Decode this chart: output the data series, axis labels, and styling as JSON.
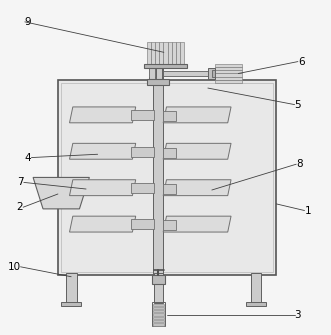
{
  "bg_color": "#f5f5f5",
  "body_fc": "#e8e8e8",
  "body_ec": "#555555",
  "blade_fc": "#d8d8d8",
  "blade_ec": "#707070",
  "shaft_fc": "#cccccc",
  "shaft_ec": "#555555",
  "motor_fc": "#d0d0d0",
  "motor_ec": "#606060",
  "leg_fc": "#cccccc",
  "leg_ec": "#606060",
  "label_fs": 7.5,
  "line_color": "#404040",
  "lw": 0.5
}
